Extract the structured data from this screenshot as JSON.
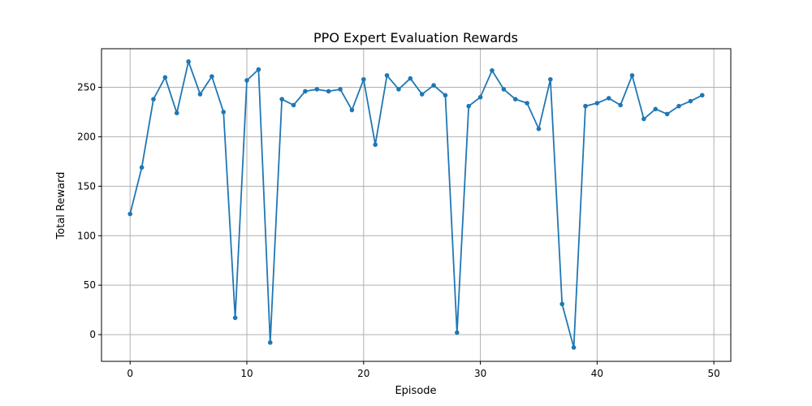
{
  "chart_data": {
    "type": "line",
    "title": "PPO Expert Evaluation Rewards",
    "xlabel": "Episode",
    "ylabel": "Total Reward",
    "xlim": [
      -2.45,
      51.45
    ],
    "ylim": [
      -27,
      289
    ],
    "xticks": [
      0,
      10,
      20,
      30,
      40,
      50
    ],
    "yticks": [
      0,
      50,
      100,
      150,
      200,
      250
    ],
    "grid": true,
    "color": "#1f77b4",
    "marker": "circle",
    "x": [
      0,
      1,
      2,
      3,
      4,
      5,
      6,
      7,
      8,
      9,
      10,
      11,
      12,
      13,
      14,
      15,
      16,
      17,
      18,
      19,
      20,
      21,
      22,
      23,
      24,
      25,
      26,
      27,
      28,
      29,
      30,
      31,
      32,
      33,
      34,
      35,
      36,
      37,
      38,
      39,
      40,
      41,
      42,
      43,
      44,
      45,
      46,
      47,
      48,
      49
    ],
    "y": [
      122,
      169,
      238,
      260,
      224,
      276,
      243,
      261,
      225,
      17,
      257,
      268,
      -8,
      238,
      232,
      246,
      248,
      246,
      248,
      227,
      258,
      192,
      262,
      248,
      259,
      243,
      252,
      242,
      2,
      231,
      240,
      267,
      248,
      238,
      234,
      208,
      258,
      31,
      -13,
      231,
      234,
      239,
      232,
      262,
      218,
      228,
      223,
      231,
      236,
      242
    ]
  }
}
